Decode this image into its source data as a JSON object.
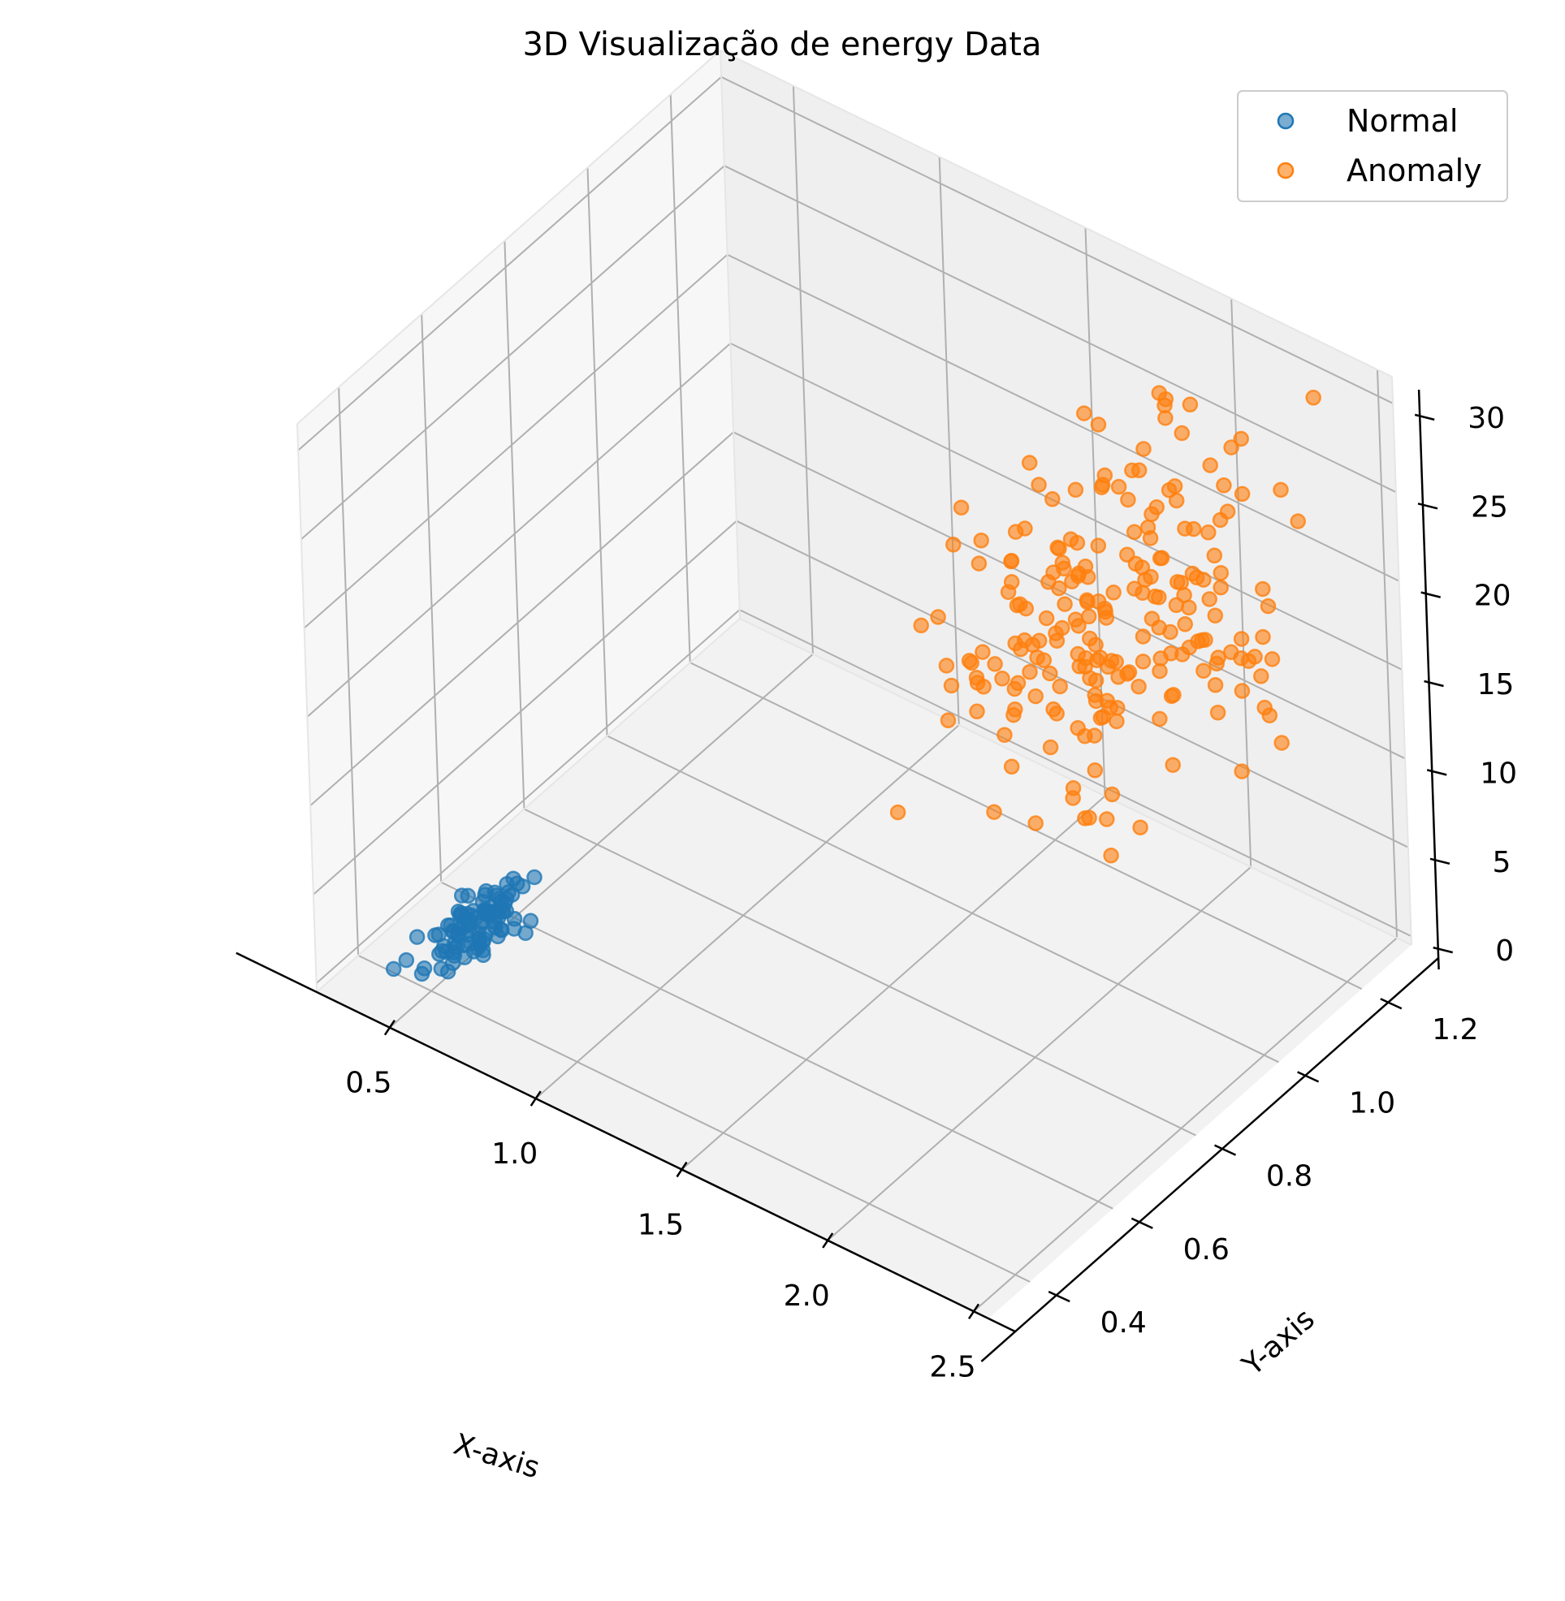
{
  "chart_data": {
    "type": "scatter",
    "title": "3D Visualização de energy Data",
    "xlabel": "X-axis",
    "ylabel": "Y-axis",
    "zlabel": "",
    "x_ticks": [
      "0.5",
      "1.0",
      "1.5",
      "2.0",
      "2.5"
    ],
    "y_ticks": [
      "0.4",
      "0.6",
      "0.8",
      "1.0",
      "1.2"
    ],
    "z_ticks": [
      "0",
      "5",
      "10",
      "15",
      "20",
      "25",
      "30"
    ],
    "xlim": [
      0.25,
      2.55
    ],
    "ylim": [
      0.3,
      1.32
    ],
    "zlim": [
      -0.5,
      31.5
    ],
    "grid": true,
    "legend_position": "top-right",
    "series": [
      {
        "name": "Normal",
        "color": "#1f77b4",
        "center": {
          "x": 0.48,
          "y": 0.52,
          "z": 0.6
        },
        "spread": {
          "x": 0.05,
          "y": 0.06,
          "z": 0.3
        },
        "count": 100
      },
      {
        "name": "Anomaly",
        "color": "#ff7f0e",
        "center": {
          "x": 2.0,
          "y": 1.0,
          "z": 20
        },
        "spread": {
          "x": 0.2,
          "y": 0.16,
          "z": 3.8
        },
        "count": 220
      }
    ]
  }
}
